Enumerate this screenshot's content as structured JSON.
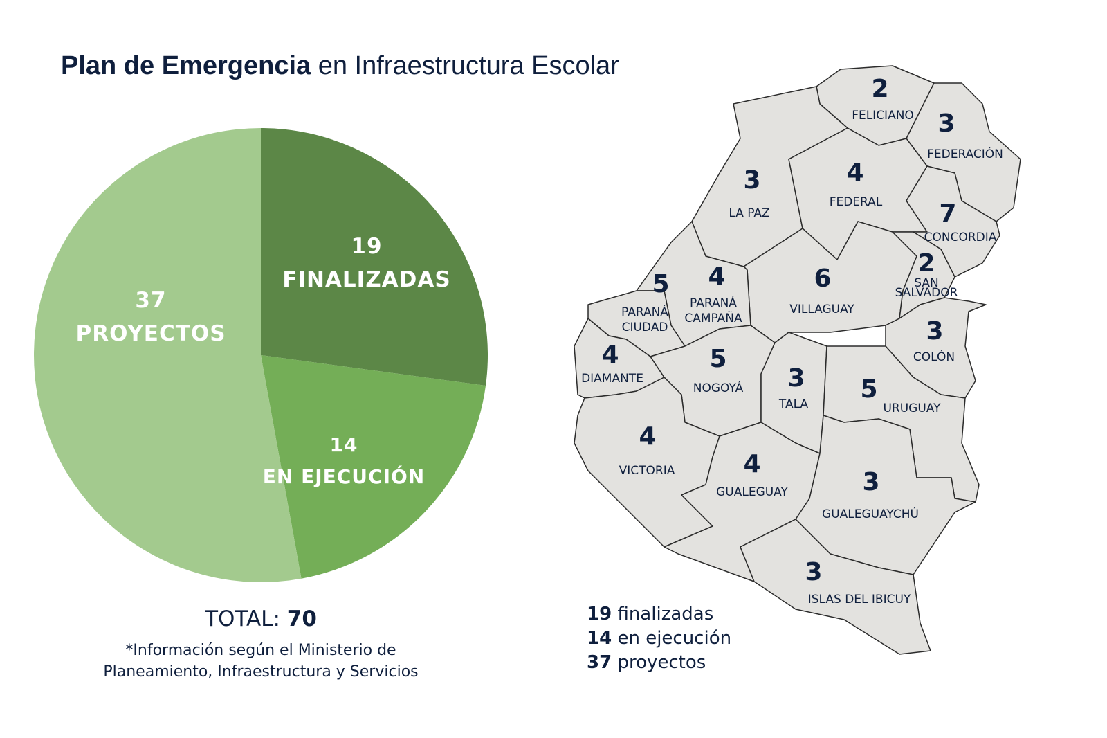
{
  "title": {
    "bold": "Plan de Emergencia",
    "regular": "en Infraestructura Escolar"
  },
  "chart_data": {
    "type": "pie",
    "title": "Plan de Emergencia en Infraestructura Escolar",
    "slices": [
      {
        "label": "FINALIZADAS",
        "value": 19,
        "color": "#5c8747"
      },
      {
        "label": "EN EJECUCIÓN",
        "value": 14,
        "color": "#74ae57"
      },
      {
        "label": "PROYECTOS",
        "value": 37,
        "color": "#a3ca8e"
      }
    ],
    "total_label": "TOTAL:",
    "total": 70
  },
  "note": {
    "line1": "*Información según el Ministerio de",
    "line2": "Planeamiento, Infraestructura y Servicios"
  },
  "map": {
    "fill": "#e3e2df",
    "departments": [
      {
        "name": "FELICIANO",
        "count": 2
      },
      {
        "name": "FEDERACIÓN",
        "count": 3
      },
      {
        "name": "LA PAZ",
        "count": 3
      },
      {
        "name": "FEDERAL",
        "count": 4
      },
      {
        "name": "CONCORDIA",
        "count": 7
      },
      {
        "name": "VILLAGUAY",
        "count": 6
      },
      {
        "name_lines": [
          "SAN",
          "SALVADOR"
        ],
        "count": 2
      },
      {
        "name": "COLÓN",
        "count": 3
      },
      {
        "name_lines": [
          "PARANÁ",
          "CAMPAÑA"
        ],
        "count": 4
      },
      {
        "name_lines": [
          "PARANÁ",
          "CIUDAD"
        ],
        "count": 5
      },
      {
        "name": "DIAMANTE",
        "count": 4
      },
      {
        "name": "NOGOYÁ",
        "count": 5
      },
      {
        "name": "TALA",
        "count": 3
      },
      {
        "name": "URUGUAY",
        "count": 5
      },
      {
        "name": "VICTORIA",
        "count": 4
      },
      {
        "name": "GUALEGUAY",
        "count": 4
      },
      {
        "name": "GUALEGUAYCHÚ",
        "count": 3
      },
      {
        "name": "ISLAS DEL IBICUY",
        "count": 3
      }
    ]
  },
  "legend": [
    {
      "value": "19",
      "text": "finalizadas"
    },
    {
      "value": "14",
      "text": "en ejecución"
    },
    {
      "value": "37",
      "text": "proyectos"
    }
  ]
}
